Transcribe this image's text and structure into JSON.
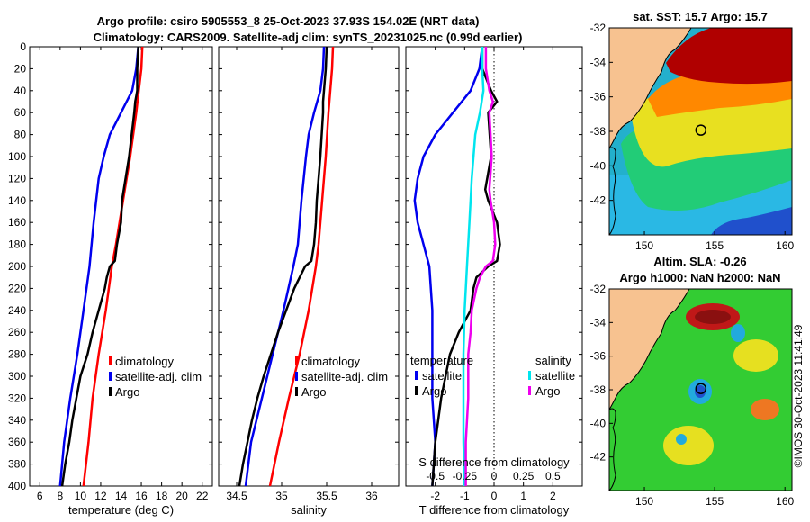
{
  "titles": {
    "line1": "Argo profile: csiro 5905553_8 25-Oct-2023 37.93S 154.02E (NRT data)",
    "line2": "Climatology: CARS2009. Satellite-adj clim: synTS_20231025.nc (0.99d earlier)"
  },
  "credit": "©IMOS 30-Oct-2023 11:41:49",
  "colors": {
    "argo": "#000000",
    "clim": "#ff0000",
    "sat": "#0000ee",
    "sal_sat": "#00e5ee",
    "sal_argo": "#ee00ee",
    "land": "#f7c290"
  },
  "depth_ticks": [
    0,
    20,
    40,
    60,
    80,
    100,
    120,
    140,
    160,
    180,
    200,
    220,
    240,
    260,
    280,
    300,
    320,
    340,
    360,
    380,
    400
  ],
  "chart_data": [
    {
      "type": "line",
      "title": "",
      "xlabel": "temperature (deg C)",
      "ylabel": "depth",
      "xlim": [
        5,
        23
      ],
      "ylim": [
        400,
        0
      ],
      "xticks": [
        6,
        8,
        10,
        12,
        14,
        16,
        18,
        20,
        22
      ],
      "legend": [
        "climatology",
        "satellite-adj. clim",
        "Argo"
      ],
      "series": [
        {
          "name": "climatology",
          "color": "clim",
          "depth": [
            0,
            20,
            60,
            100,
            140,
            180,
            200,
            240,
            280,
            320,
            360,
            400
          ],
          "values": [
            16.1,
            16.0,
            15.5,
            14.9,
            14.2,
            13.5,
            13.1,
            12.5,
            11.8,
            11.2,
            10.8,
            10.3
          ]
        },
        {
          "name": "satellite-adj. clim",
          "color": "sat",
          "depth": [
            0,
            20,
            40,
            60,
            80,
            100,
            120,
            160,
            200,
            240,
            280,
            320,
            360,
            400
          ],
          "values": [
            15.7,
            15.5,
            15.1,
            14.0,
            12.9,
            12.3,
            11.8,
            11.3,
            10.9,
            10.3,
            9.7,
            9.0,
            8.4,
            8.0
          ]
        },
        {
          "name": "Argo",
          "color": "argo",
          "depth": [
            0,
            20,
            40,
            50,
            60,
            100,
            140,
            160,
            180,
            195,
            200,
            210,
            220,
            240,
            260,
            280,
            300,
            320,
            340,
            360,
            380,
            400
          ],
          "values": [
            15.7,
            15.6,
            15.6,
            15.4,
            15.3,
            14.8,
            14.1,
            14.0,
            13.6,
            13.4,
            12.9,
            12.6,
            12.4,
            11.8,
            11.2,
            10.7,
            10.0,
            9.6,
            9.2,
            8.9,
            8.5,
            8.2
          ]
        }
      ]
    },
    {
      "type": "line",
      "title": "",
      "xlabel": "salinity",
      "ylabel": "",
      "xlim": [
        34.3,
        36.3
      ],
      "ylim": [
        400,
        0
      ],
      "xticks": [
        34.5,
        35,
        35.5,
        36
      ],
      "legend": [
        "climatology",
        "satellite-adj. clim",
        "Argo"
      ],
      "series": [
        {
          "name": "climatology",
          "color": "clim",
          "depth": [
            0,
            20,
            60,
            100,
            140,
            180,
            200,
            240,
            280,
            320,
            360,
            400
          ],
          "values": [
            35.57,
            35.56,
            35.52,
            35.49,
            35.45,
            35.41,
            35.38,
            35.3,
            35.2,
            35.08,
            34.97,
            34.87
          ]
        },
        {
          "name": "satellite-adj. clim",
          "color": "sat",
          "depth": [
            0,
            20,
            40,
            60,
            80,
            100,
            140,
            180,
            200,
            240,
            280,
            320,
            360,
            400
          ],
          "values": [
            35.47,
            35.46,
            35.43,
            35.36,
            35.3,
            35.27,
            35.22,
            35.18,
            35.13,
            35.02,
            34.9,
            34.78,
            34.66,
            34.6
          ]
        },
        {
          "name": "Argo",
          "color": "argo",
          "depth": [
            0,
            20,
            40,
            50,
            60,
            100,
            140,
            160,
            180,
            195,
            200,
            210,
            220,
            240,
            260,
            280,
            300,
            320,
            340,
            360,
            380,
            400
          ],
          "values": [
            35.5,
            35.49,
            35.47,
            35.46,
            35.46,
            35.43,
            35.39,
            35.38,
            35.36,
            35.33,
            35.26,
            35.2,
            35.14,
            35.05,
            34.96,
            34.88,
            34.8,
            34.73,
            34.67,
            34.62,
            34.57,
            34.53
          ]
        }
      ]
    },
    {
      "type": "line",
      "title": "",
      "xlabel": "T difference from climatology",
      "xlabel_top": "S difference from climatology",
      "ylabel": "",
      "xlim": [
        -3,
        3
      ],
      "ylim": [
        400,
        0
      ],
      "xticks": [
        -2,
        -1,
        0,
        1,
        2
      ],
      "xticks_top": [
        -0.5,
        -0.25,
        0,
        0.25,
        0.5
      ],
      "xticks_top_labels": [
        "-0.5",
        "-0.25",
        "0",
        "0.25",
        "0.5"
      ],
      "legend_temp": {
        "title": "temperature",
        "items": [
          "satellite",
          "Argo"
        ]
      },
      "legend_sal": {
        "title": "salinity",
        "items": [
          "satellite",
          "Argo"
        ]
      },
      "series": [
        {
          "name": "temperature satellite",
          "color": "sat",
          "depth": [
            0,
            20,
            40,
            60,
            80,
            100,
            120,
            140,
            160,
            180,
            200,
            240,
            280,
            320,
            360,
            400
          ],
          "values": [
            -0.4,
            -0.5,
            -0.8,
            -1.4,
            -2.0,
            -2.4,
            -2.6,
            -2.7,
            -2.6,
            -2.4,
            -2.2,
            -2.1,
            -2.1,
            -2.1,
            -2.0,
            -2.1
          ]
        },
        {
          "name": "temperature Argo",
          "color": "argo",
          "depth": [
            0,
            20,
            40,
            50,
            60,
            100,
            130,
            140,
            160,
            180,
            195,
            200,
            210,
            220,
            240,
            260,
            280,
            320,
            360,
            400
          ],
          "values": [
            -0.4,
            -0.4,
            -0.1,
            0.1,
            -0.2,
            -0.1,
            -0.3,
            -0.2,
            0.1,
            0.2,
            0.1,
            -0.2,
            -0.6,
            -0.7,
            -0.8,
            -1.2,
            -1.5,
            -1.8,
            -2.0,
            -2.1
          ]
        },
        {
          "name": "salinity satellite",
          "color": "sal_sat",
          "depth": [
            0,
            20,
            40,
            60,
            80,
            120,
            160,
            200,
            240,
            280,
            320,
            360,
            400
          ],
          "values": [
            -0.1,
            -0.1,
            -0.09,
            -0.12,
            -0.16,
            -0.19,
            -0.21,
            -0.23,
            -0.25,
            -0.26,
            -0.26,
            -0.26,
            -0.25
          ]
        },
        {
          "name": "salinity Argo",
          "color": "sal_argo",
          "depth": [
            0,
            20,
            40,
            50,
            60,
            100,
            130,
            140,
            160,
            180,
            195,
            200,
            210,
            220,
            240,
            260,
            280,
            320,
            360,
            400
          ],
          "values": [
            -0.07,
            -0.07,
            -0.04,
            -0.01,
            -0.04,
            -0.02,
            -0.04,
            -0.03,
            0.0,
            0.01,
            -0.01,
            -0.07,
            -0.12,
            -0.15,
            -0.19,
            -0.2,
            -0.22,
            -0.22,
            -0.24,
            -0.24
          ]
        }
      ]
    },
    {
      "type": "heatmap",
      "title": "sat. SST: 15.7 Argo: 15.7",
      "xlim": [
        147.5,
        160.5
      ],
      "ylim": [
        -44,
        -32
      ],
      "xticks": [
        150,
        155,
        160
      ],
      "yticks": [
        -32,
        -34,
        -36,
        -38,
        -40,
        -42
      ],
      "marker": {
        "lon": 154.02,
        "lat": -37.93
      }
    },
    {
      "type": "heatmap",
      "title_line1": "Altim. SLA: -0.26",
      "title_line2": "Argo h1000: NaN h2000: NaN",
      "xlim": [
        147.5,
        160.5
      ],
      "ylim": [
        -44,
        -32
      ],
      "xticks": [
        150,
        155,
        160
      ],
      "yticks": [
        -32,
        -34,
        -36,
        -38,
        -40,
        -42
      ],
      "marker": {
        "lon": 154.02,
        "lat": -37.93
      }
    }
  ]
}
